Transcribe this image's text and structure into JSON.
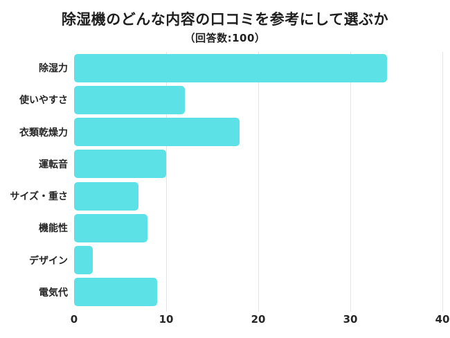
{
  "title": "除湿機のどんな内容の口コミを参考にして選ぶか",
  "subtitle": "（回答数:100）",
  "colors": {
    "bar": "#5CE1E6",
    "gridline": "#e4e4e4",
    "text": "#262626",
    "background": "#ffffff"
  },
  "chart_data": {
    "type": "bar",
    "orientation": "horizontal",
    "title": "除湿機のどんな内容の口コミを参考にして選ぶか",
    "subtitle": "（回答数:100）",
    "categories": [
      "除湿力",
      "使いやすさ",
      "衣類乾燥力",
      "運転音",
      "サイズ・重さ",
      "機能性",
      "デザイン",
      "電気代"
    ],
    "values": [
      34,
      12,
      18,
      10,
      7,
      8,
      2,
      9
    ],
    "xlabel": "",
    "ylabel": "",
    "xlim": [
      0,
      40
    ],
    "xticks": [
      0,
      10,
      20,
      30,
      40
    ],
    "grid": true,
    "legend": false
  }
}
